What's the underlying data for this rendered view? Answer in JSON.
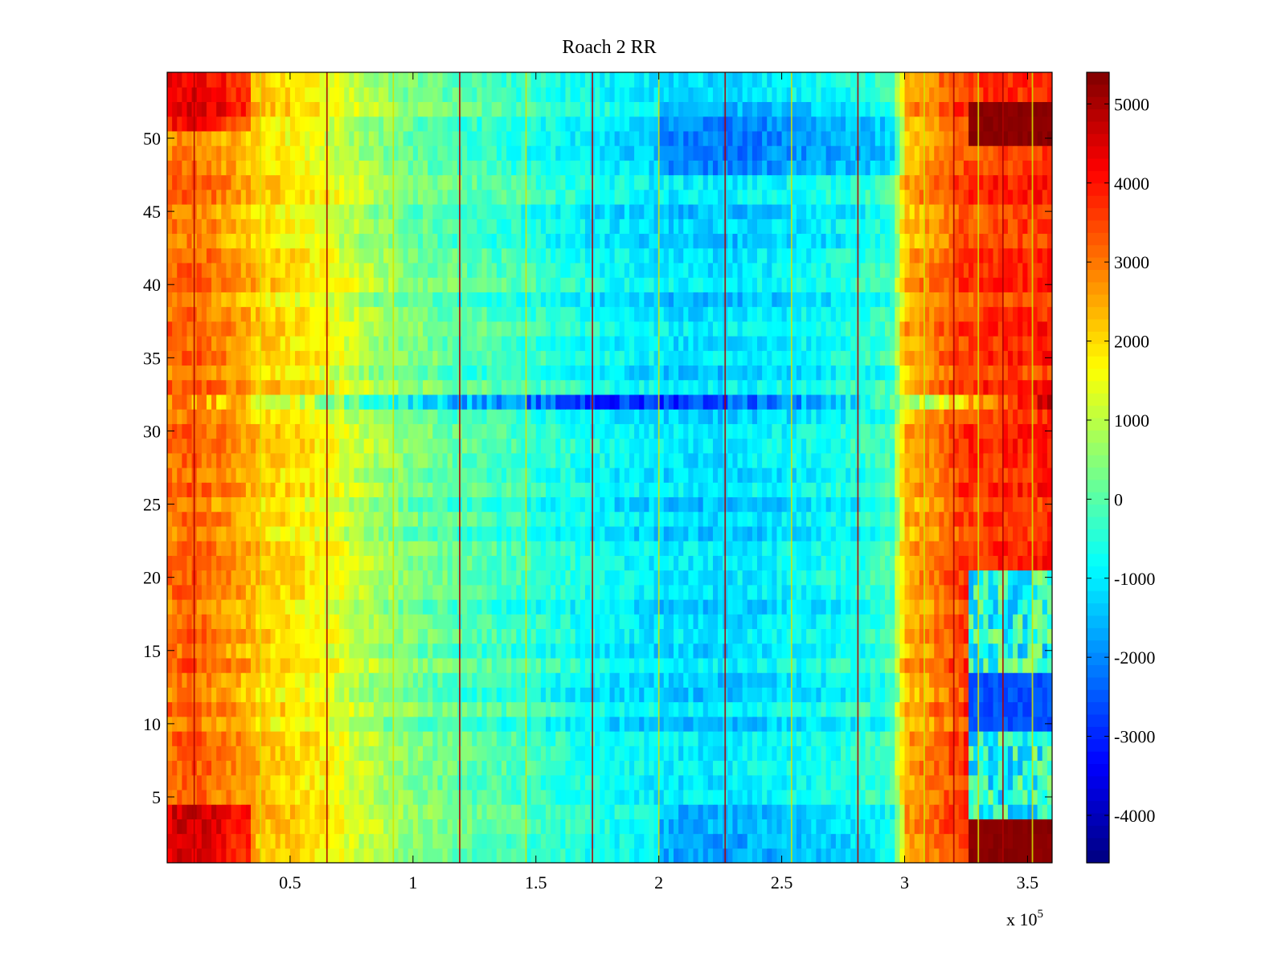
{
  "chart_data": {
    "type": "heatmap",
    "title": "Roach 2 RR",
    "xlabel": "",
    "ylabel": "",
    "x_multiplier_label": {
      "base": "x 10",
      "exponent": "5"
    },
    "xlim": [
      0,
      3.6
    ],
    "ylim": [
      0.5,
      54.5
    ],
    "x_ticks": [
      0.5,
      1,
      1.5,
      2,
      2.5,
      3,
      3.5
    ],
    "x_tick_labels": [
      "0.5",
      "1",
      "1.5",
      "2",
      "2.5",
      "3",
      "3.5"
    ],
    "y_ticks": [
      5,
      10,
      15,
      20,
      25,
      30,
      35,
      40,
      45,
      50
    ],
    "y_tick_labels": [
      "5",
      "10",
      "15",
      "20",
      "25",
      "30",
      "35",
      "40",
      "45",
      "50"
    ],
    "rows": 54,
    "colormap": "jet",
    "colorbar": {
      "clim": [
        -4600,
        5400
      ],
      "ticks": [
        -4000,
        -3000,
        -2000,
        -1000,
        0,
        1000,
        2000,
        3000,
        4000,
        5000
      ],
      "tick_labels": [
        "-4000",
        "-3000",
        "-2000",
        "-1000",
        "0",
        "1000",
        "2000",
        "3000",
        "4000",
        "5000"
      ]
    },
    "column_profile": {
      "x": [
        0.0,
        0.1,
        0.25,
        0.4,
        0.6,
        0.8,
        1.0,
        1.25,
        1.5,
        1.75,
        2.0,
        2.25,
        2.5,
        2.75,
        2.95,
        3.0,
        3.1,
        3.25,
        3.6
      ],
      "base_value": [
        3000,
        3200,
        2700,
        2100,
        1700,
        900,
        300,
        -100,
        -400,
        -800,
        -1100,
        -1200,
        -1000,
        -700,
        -300,
        2400,
        2800,
        3600,
        3800
      ]
    },
    "special_rows": [
      {
        "row": 32,
        "description_values": [
          3000,
          1500,
          -500,
          -2000,
          -3000,
          -2500,
          -1500,
          1500,
          4500
        ]
      },
      {
        "rows": [
          1,
          2,
          3
        ],
        "late_value": 5300
      },
      {
        "rows": [
          50,
          51,
          52
        ],
        "late_value": 5300
      },
      {
        "rows": [
          10,
          11,
          12,
          13
        ],
        "late_value": -2600
      }
    ],
    "streak_lines_x": [
      0.11,
      0.38,
      0.65,
      0.92,
      1.19,
      1.46,
      1.73,
      2.0,
      2.27,
      2.54,
      2.81,
      3.08,
      3.2,
      3.3,
      3.4,
      3.52
    ]
  }
}
